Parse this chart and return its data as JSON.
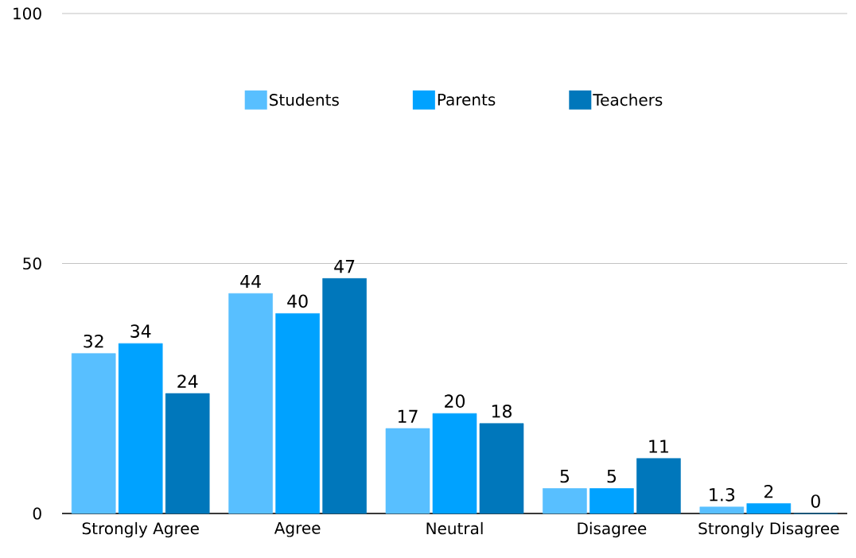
{
  "chart_data": {
    "type": "bar",
    "categories": [
      "Strongly Agree",
      "Agree",
      "Neutral",
      "Disagree",
      "Strongly Disagree"
    ],
    "series": [
      {
        "name": "Students",
        "color": "#58bfff",
        "values": [
          32,
          44,
          17,
          5,
          1.3
        ]
      },
      {
        "name": "Parents",
        "color": "#00a2ff",
        "values": [
          34,
          40,
          20,
          5,
          2
        ]
      },
      {
        "name": "Teachers",
        "color": "#0077bb",
        "values": [
          24,
          47,
          18,
          11,
          0
        ]
      }
    ],
    "ylim": [
      0,
      100
    ],
    "yticks": [
      0,
      50,
      100
    ],
    "grid": "y",
    "legend": "top",
    "data_labels": true
  }
}
